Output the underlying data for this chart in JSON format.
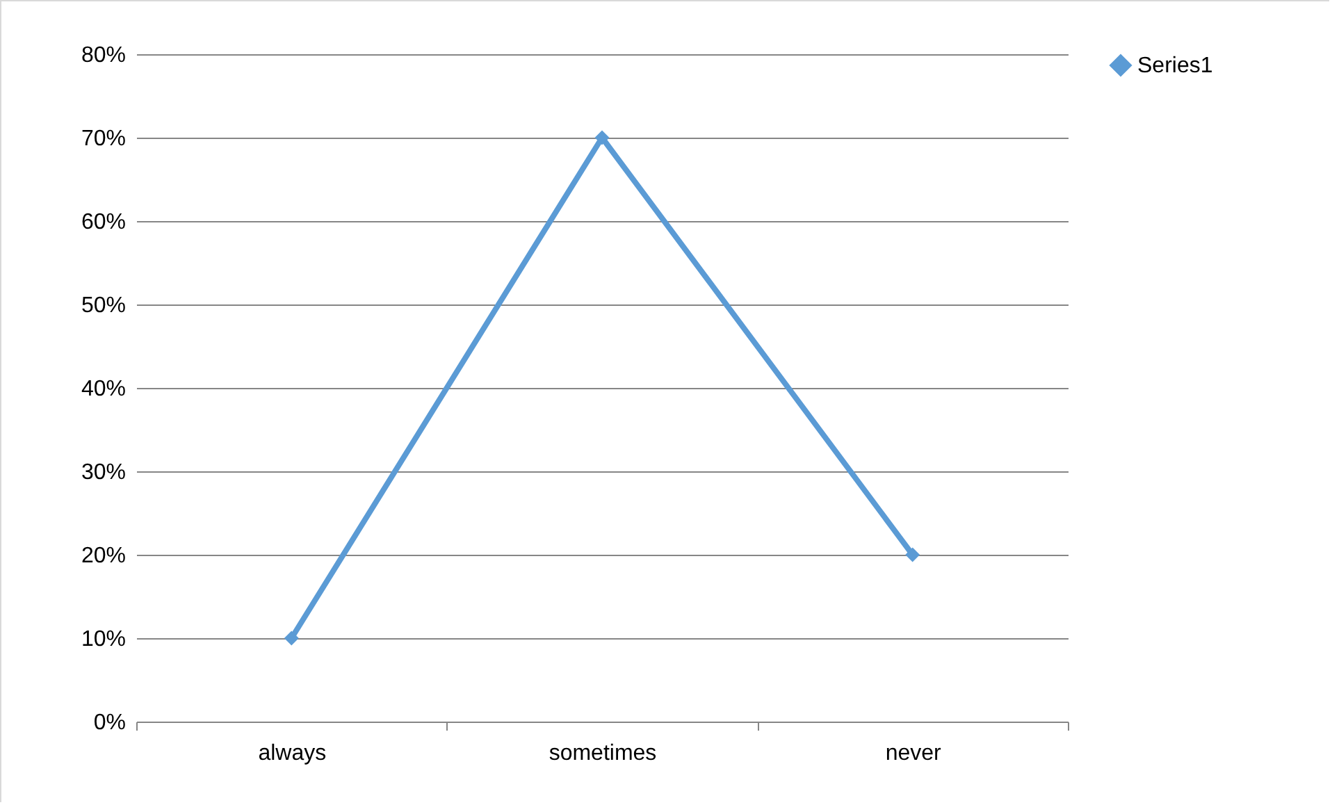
{
  "chart_data": {
    "type": "line",
    "categories": [
      "always",
      "sometimes",
      "never"
    ],
    "series": [
      {
        "name": "Series1",
        "color": "#5b9bd5",
        "values": [
          10,
          70,
          20
        ]
      }
    ],
    "ylim": [
      0,
      80
    ],
    "yticks": [
      {
        "value": 0,
        "label": "0%"
      },
      {
        "value": 10,
        "label": "10%"
      },
      {
        "value": 20,
        "label": "20%"
      },
      {
        "value": 30,
        "label": "30%"
      },
      {
        "value": 40,
        "label": "40%"
      },
      {
        "value": 50,
        "label": "50%"
      },
      {
        "value": 60,
        "label": "60%"
      },
      {
        "value": 70,
        "label": "70%"
      },
      {
        "value": 80,
        "label": "80%"
      }
    ],
    "grid": "y",
    "legend": "right",
    "marker": "diamond",
    "line_style": "solid"
  }
}
